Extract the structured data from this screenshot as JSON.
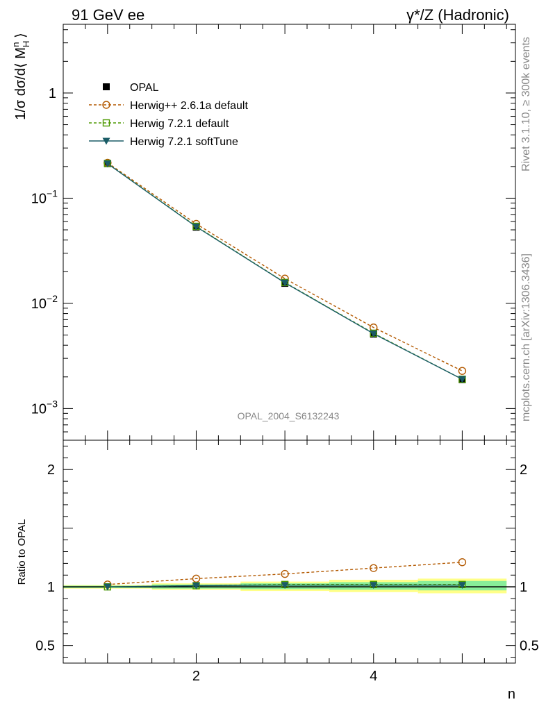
{
  "header": {
    "left_title": "91 GeV ee",
    "right_title": "γ*/Z (Hadronic)"
  },
  "side_labels": {
    "rivet": "Rivet 3.1.10, ≥ 300k events",
    "mcplots": "mcplots.cern.ch [arXiv:1306.3436]"
  },
  "watermark": "OPAL_2004_S6132243",
  "chart_data": [
    {
      "type": "line",
      "panel": "main",
      "title": "91 GeV ee",
      "ylabel": "1/σ dσ/d⟨ M_H^n ⟩",
      "y_scale": "log",
      "xlim": [
        0.5,
        5.6
      ],
      "ylim": [
        0.0005,
        4.5
      ],
      "y_ticks": [
        {
          "value": 0.001,
          "mantissa": "10",
          "exp": "−3"
        },
        {
          "value": 0.01,
          "mantissa": "10",
          "exp": "−2"
        },
        {
          "value": 0.1,
          "mantissa": "10",
          "exp": "−1"
        },
        {
          "value": 1,
          "mantissa": "1",
          "exp": ""
        }
      ],
      "x": [
        1,
        2,
        3,
        4,
        5
      ],
      "series": [
        {
          "name": "OPAL",
          "color": "#000000",
          "marker": "filled-square",
          "line": "none",
          "values": [
            0.213,
            0.053,
            0.0155,
            0.0051,
            0.00188
          ]
        },
        {
          "name": "Herwig++ 2.6.1a default",
          "color": "#b35900",
          "marker": "open-circle",
          "line": "dashed",
          "values": [
            0.217,
            0.057,
            0.0172,
            0.0059,
            0.00228
          ]
        },
        {
          "name": "Herwig 7.2.1 default",
          "color": "#4d9900",
          "marker": "open-square",
          "line": "dashed",
          "values": [
            0.214,
            0.054,
            0.0158,
            0.0052,
            0.0019
          ]
        },
        {
          "name": "Herwig 7.2.1 softTune",
          "color": "#1a5c66",
          "marker": "filled-triangle-down",
          "line": "solid",
          "values": [
            0.213,
            0.0535,
            0.0157,
            0.00515,
            0.0019
          ]
        }
      ]
    },
    {
      "type": "line",
      "panel": "ratio",
      "ylabel": "Ratio to OPAL",
      "xlabel": "n",
      "xlim": [
        0.5,
        5.6
      ],
      "ylim": [
        0.35,
        2.25
      ],
      "y_ticks": [
        {
          "value": 0.5,
          "label": "0.5"
        },
        {
          "value": 1,
          "label": "1"
        },
        {
          "value": 2,
          "label": "2"
        }
      ],
      "x_ticks": [
        {
          "value": 2,
          "label": "2"
        },
        {
          "value": 4,
          "label": "4"
        }
      ],
      "x": [
        1,
        2,
        3,
        4,
        5
      ],
      "bands": [
        {
          "x_low": 0.5,
          "x_high": 1.5,
          "stat_low": 0.99,
          "stat_high": 1.01,
          "tot_low": 0.985,
          "tot_high": 1.015
        },
        {
          "x_low": 1.5,
          "x_high": 2.5,
          "stat_low": 0.985,
          "stat_high": 1.02,
          "tot_low": 0.975,
          "tot_high": 1.03
        },
        {
          "x_low": 2.5,
          "x_high": 3.5,
          "stat_low": 0.98,
          "stat_high": 1.03,
          "tot_low": 0.965,
          "tot_high": 1.045
        },
        {
          "x_low": 3.5,
          "x_high": 4.5,
          "stat_low": 0.975,
          "stat_high": 1.04,
          "tot_low": 0.955,
          "tot_high": 1.06
        },
        {
          "x_low": 4.5,
          "x_high": 5.5,
          "stat_low": 0.97,
          "stat_high": 1.05,
          "tot_low": 0.945,
          "tot_high": 1.07
        }
      ],
      "series": [
        {
          "name": "Herwig++ 2.6.1a default",
          "color": "#b35900",
          "marker": "open-circle",
          "line": "dashed",
          "values": [
            1.02,
            1.07,
            1.11,
            1.16,
            1.21
          ]
        },
        {
          "name": "Herwig 7.2.1 default",
          "color": "#4d9900",
          "marker": "open-square",
          "line": "dashed",
          "values": [
            1.0,
            1.01,
            1.02,
            1.02,
            1.02
          ]
        },
        {
          "name": "Herwig 7.2.1 softTune",
          "color": "#1a5c66",
          "marker": "filled-triangle-down",
          "line": "solid",
          "values": [
            1.0,
            1.01,
            1.015,
            1.015,
            1.015
          ]
        }
      ]
    }
  ]
}
